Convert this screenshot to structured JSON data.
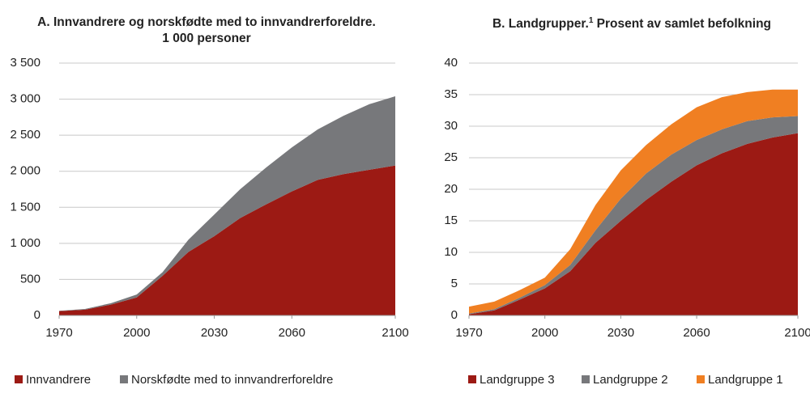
{
  "chart_data": [
    {
      "type": "stacked-area",
      "title": [
        "A. Innvandrere og norskfødte med to innvandrerforeldre.",
        "1 000 personer"
      ],
      "x": [
        1970,
        1980,
        1990,
        2000,
        2010,
        2020,
        2030,
        2040,
        2050,
        2060,
        2070,
        2080,
        2090,
        2100
      ],
      "series": [
        {
          "name": "Innvandrere",
          "color": "#9c1a14",
          "values": [
            60,
            80,
            150,
            250,
            550,
            880,
            1100,
            1350,
            1540,
            1720,
            1880,
            1960,
            2020,
            2080
          ]
        },
        {
          "name": "Norskfødte med to innvandrerforeldre",
          "color": "#77787b",
          "values": [
            5,
            10,
            20,
            40,
            50,
            170,
            300,
            400,
            510,
            610,
            700,
            810,
            910,
            960
          ]
        }
      ],
      "xlim": [
        1970,
        2100
      ],
      "xticks": [
        1970,
        2000,
        2030,
        2060,
        2100
      ],
      "ylim": [
        0,
        3500
      ],
      "yticks": [
        0,
        500,
        {
          "value": 1000,
          "label": "1 000"
        },
        {
          "value": 1500,
          "label": "1 500"
        },
        {
          "value": 2000,
          "label": "2 000"
        },
        {
          "value": 2500,
          "label": "2 500"
        },
        {
          "value": 3000,
          "label": "3 000"
        },
        {
          "value": 3500,
          "label": "3 500"
        }
      ],
      "grid": true
    },
    {
      "type": "stacked-area",
      "title": [
        "B. Landgrupper.",
        "1",
        " Prosent av samlet befolkning"
      ],
      "x": [
        1970,
        1980,
        1990,
        2000,
        2010,
        2020,
        2030,
        2040,
        2050,
        2060,
        2070,
        2080,
        2090,
        2100
      ],
      "series": [
        {
          "name": "Landgruppe 3",
          "color": "#9c1a14",
          "values": [
            0.2,
            0.8,
            2.5,
            4.3,
            7,
            11.5,
            15,
            18.3,
            21.2,
            23.8,
            25.7,
            27.2,
            28.2,
            28.9
          ]
        },
        {
          "name": "Landgruppe 2",
          "color": "#77787b",
          "values": [
            0.1,
            0.2,
            0.3,
            0.5,
            1,
            2,
            3.5,
            4.2,
            4.3,
            4,
            3.8,
            3.6,
            3.2,
            2.7
          ]
        },
        {
          "name": "Landgruppe 1",
          "color": "#f07f22",
          "values": [
            1.1,
            1.2,
            1.2,
            1.2,
            2.5,
            4,
            4.5,
            4.5,
            4.8,
            5.2,
            5.1,
            4.6,
            4.4,
            4.2
          ]
        }
      ],
      "xlim": [
        1970,
        2100
      ],
      "xticks": [
        1970,
        2000,
        2030,
        2060,
        2100
      ],
      "ylim": [
        0,
        40
      ],
      "yticks": [
        0,
        5,
        10,
        15,
        20,
        25,
        30,
        35,
        40
      ],
      "grid": true
    }
  ]
}
